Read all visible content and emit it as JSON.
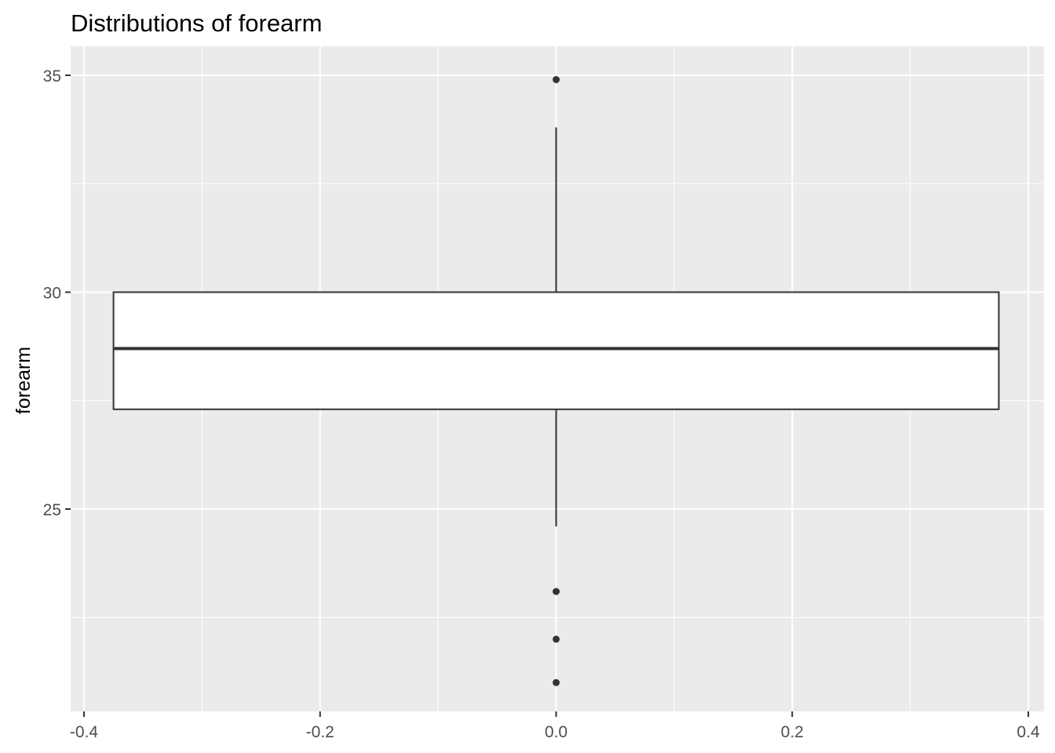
{
  "chart_data": {
    "type": "boxplot",
    "title": "Distributions of forearm",
    "xlabel": "",
    "ylabel": "forearm",
    "xlim": [
      -0.4,
      0.4
    ],
    "ylim": [
      20.5,
      35.6
    ],
    "x_ticks": [
      -0.4,
      -0.2,
      0.0,
      0.2,
      0.4
    ],
    "x_tick_labels": [
      "-0.4",
      "-0.2",
      "0.0",
      "0.2",
      "0.4"
    ],
    "y_ticks": [
      25,
      30,
      35
    ],
    "y_tick_labels": [
      "25",
      "30",
      "35"
    ],
    "grid": true,
    "box": {
      "x_center": 0.0,
      "x_left": -0.375,
      "x_right": 0.375,
      "lower_whisker": 24.6,
      "q1": 27.3,
      "median": 28.7,
      "q3": 30.0,
      "upper_whisker": 33.8
    },
    "outliers": [
      34.9,
      23.1,
      22.0,
      21.0
    ]
  },
  "colors": {
    "panel": "#ebebeb",
    "grid": "#ffffff",
    "box_fill": "#ffffff",
    "box_line": "#333333",
    "outlier": "#333333",
    "tick": "#333333"
  }
}
